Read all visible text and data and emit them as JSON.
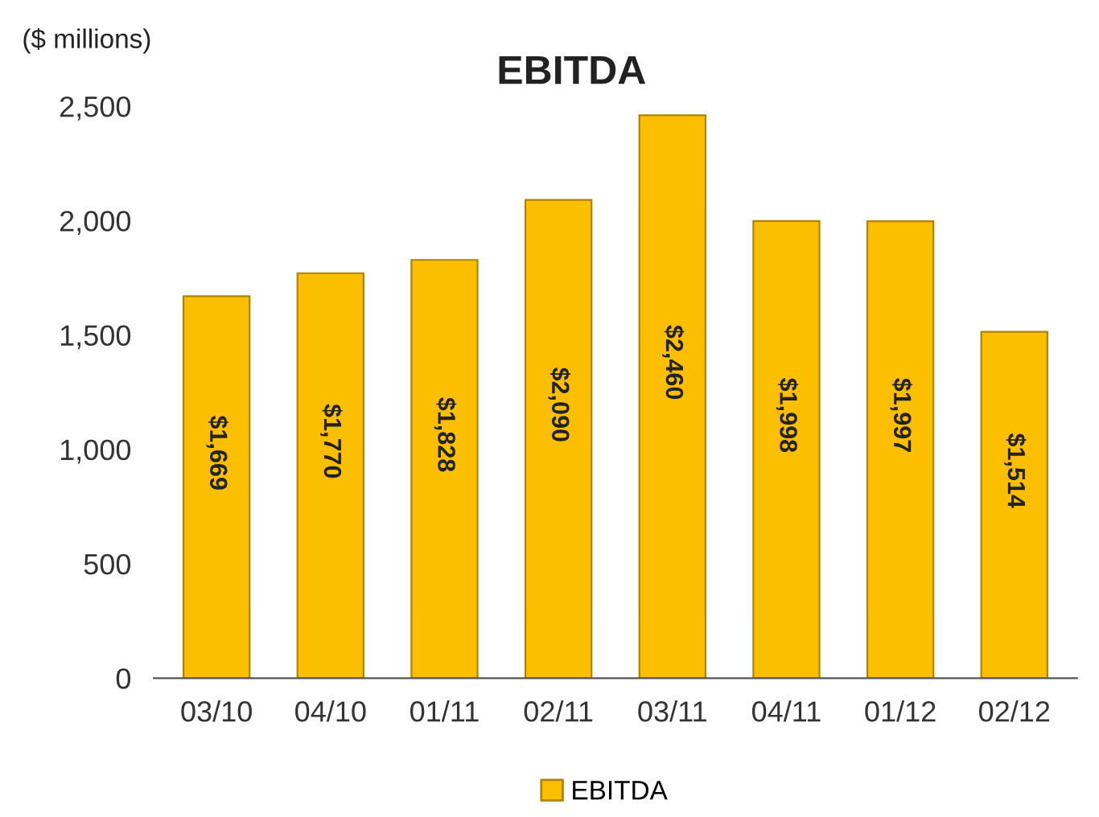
{
  "chart_data": {
    "type": "bar",
    "title": "EBITDA",
    "ylabel": "($ millions)",
    "categories": [
      "03/10",
      "04/10",
      "01/11",
      "02/11",
      "03/11",
      "04/11",
      "01/12",
      "02/12"
    ],
    "series": [
      {
        "name": "EBITDA",
        "color": "#fbbf00",
        "values": [
          1669,
          1770,
          1828,
          2090,
          2460,
          1998,
          1997,
          1514
        ],
        "value_labels": [
          "$1,669",
          "$1,770",
          "$1,828",
          "$2,090",
          "$2,460",
          "$1,998",
          "$1,997",
          "$1,514"
        ]
      }
    ],
    "ylim": [
      0,
      2500
    ],
    "yticks": [
      0,
      {
        "value": 500,
        "label": "500"
      },
      {
        "value": 1000,
        "label": "1,000"
      },
      {
        "value": 1500,
        "label": "1,500"
      },
      {
        "value": 2000,
        "label": "2,000"
      },
      {
        "value": 2500,
        "label": "2,500"
      }
    ],
    "grid": false,
    "legend": "bottom"
  }
}
